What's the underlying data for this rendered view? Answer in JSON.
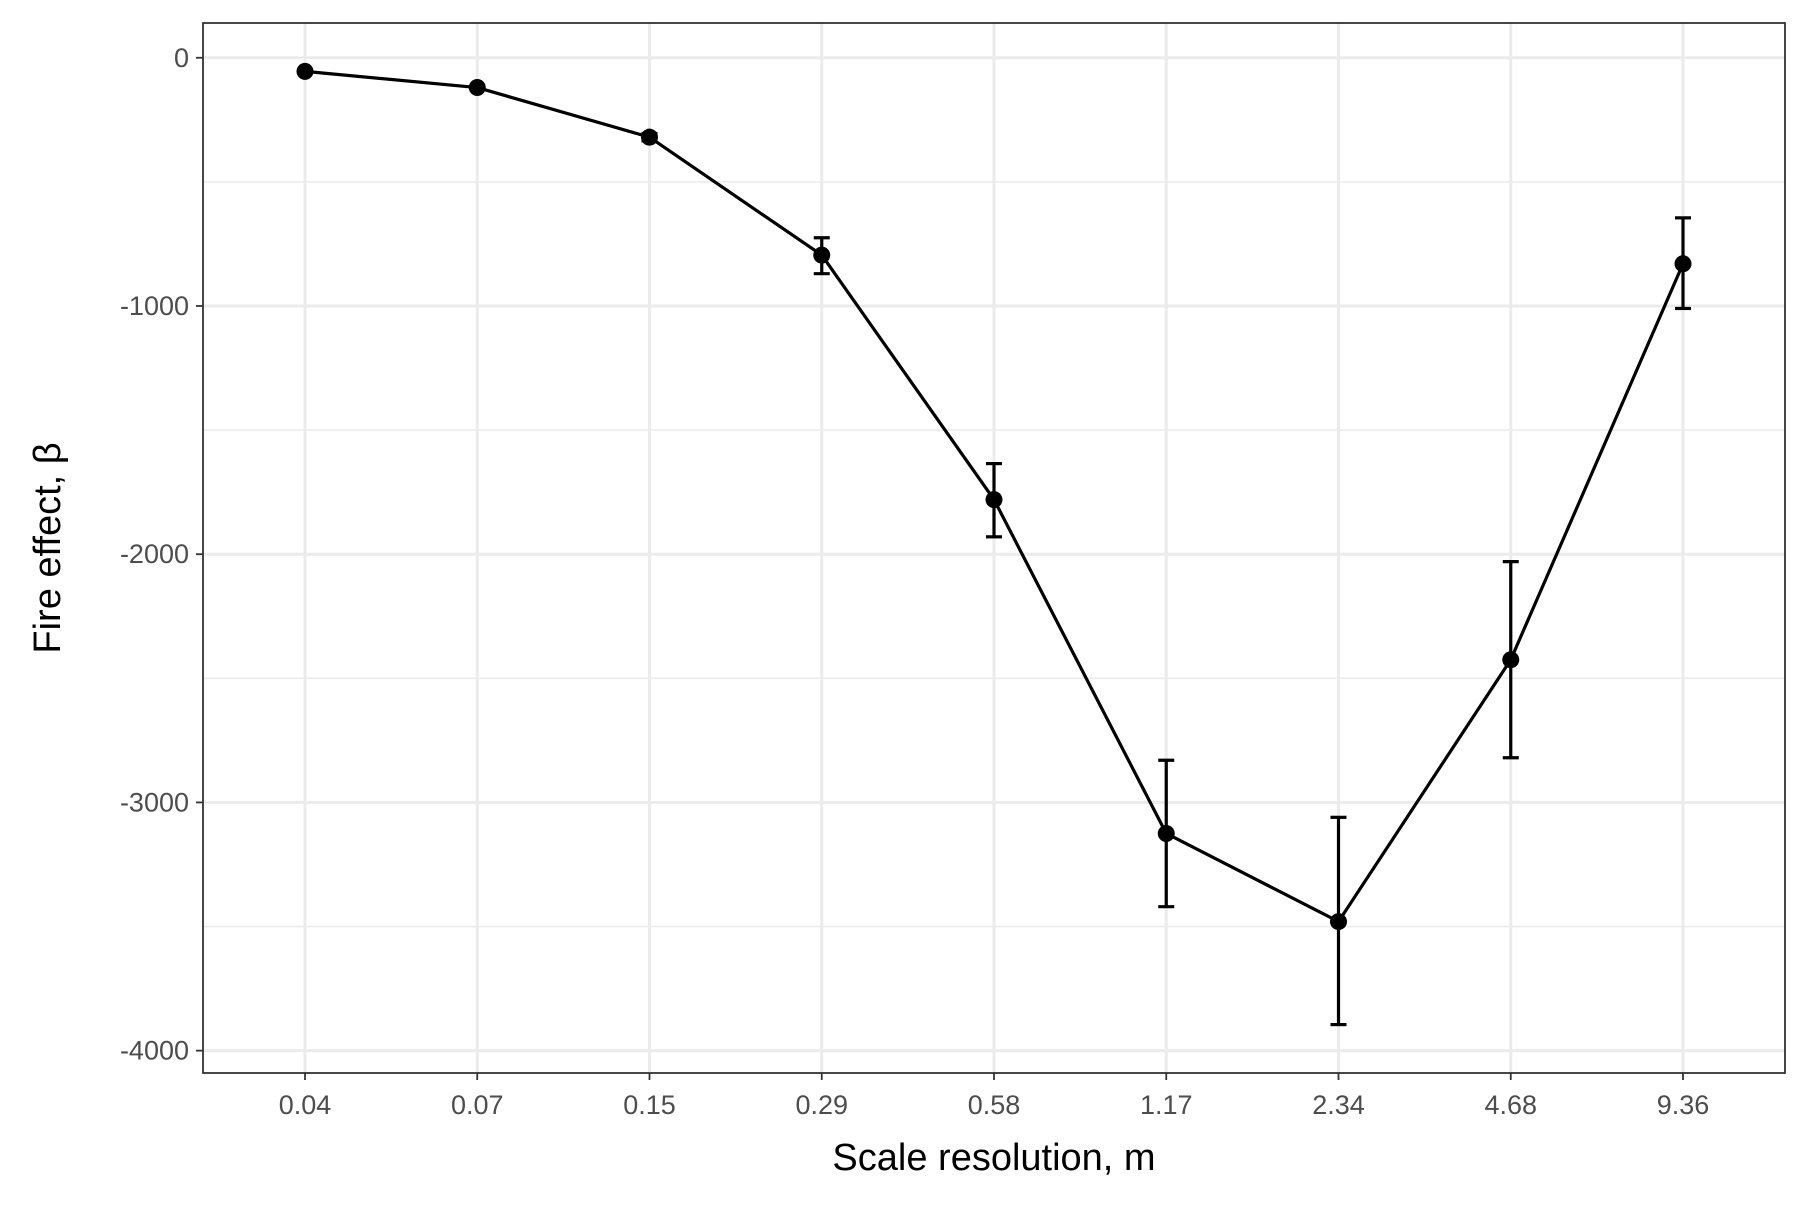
{
  "chart_data": {
    "type": "line",
    "title": "",
    "xlabel": "Scale resolution, m",
    "ylabel": "Fire effect, β",
    "x_tick_labels": [
      "0.04",
      "0.07",
      "0.15",
      "0.29",
      "0.58",
      "1.17",
      "2.34",
      "4.68",
      "9.36"
    ],
    "y_tick_labels": [
      "0",
      "-1000",
      "-2000",
      "-3000",
      "-4000"
    ],
    "y_ticks": [
      0,
      -1000,
      -2000,
      -3000,
      -4000
    ],
    "y_minor_ticks": [
      -500,
      -1500,
      -2500,
      -3500
    ],
    "ylim": [
      -4090,
      140
    ],
    "grid": true,
    "legend": "none",
    "series": [
      {
        "x": [
          "0.04",
          "0.07",
          "0.15",
          "0.29",
          "0.58",
          "1.17",
          "2.34",
          "4.68",
          "9.36"
        ],
        "values": [
          -55,
          -120,
          -320,
          -795,
          -1780,
          -3125,
          -3480,
          -2425,
          -830
        ],
        "error_low": [
          -55,
          -120,
          -335,
          -870,
          -1930,
          -3420,
          -3895,
          -2820,
          -1010
        ],
        "error_high": [
          -55,
          -120,
          -305,
          -725,
          -1635,
          -2830,
          -3060,
          -2030,
          -645
        ]
      }
    ],
    "colors": {
      "line": "#000000",
      "grid": "#ebebeb",
      "panel_border": "#333333",
      "tick_text": "#4d4d4d",
      "axis_title": "#000000"
    }
  }
}
